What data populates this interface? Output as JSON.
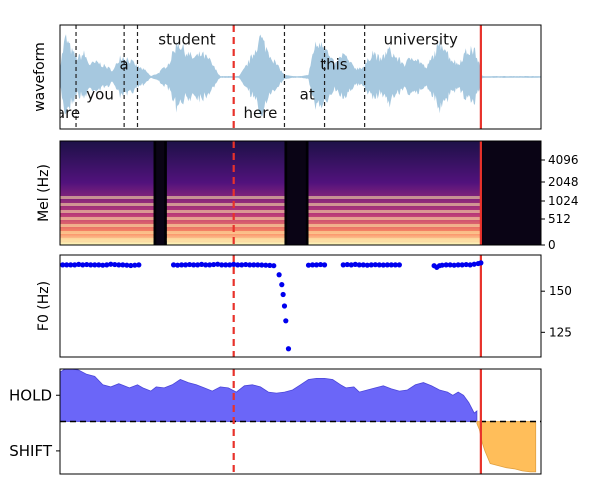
{
  "colors": {
    "waveform": "#a6c8df",
    "word_boundary": "#222222",
    "cursor_dashed": "#e8322b",
    "cursor_solid": "#e8322b",
    "f0_points": "#0000ee",
    "hold_fill": "#6b66f8",
    "shift_fill": "#ffbe5a",
    "threshold": "#000000"
  },
  "chart_data": [
    {
      "type": "area",
      "panel": "waveform",
      "ylabel": "waveform",
      "words": [
        {
          "text": "are",
          "t": 0.06,
          "y": -0.72
        },
        {
          "text": "you",
          "t": 0.3,
          "y": -0.35
        },
        {
          "text": "a",
          "t": 0.48,
          "y": 0.25
        },
        {
          "text": "student",
          "t": 0.95,
          "y": 0.75
        },
        {
          "text": "here",
          "t": 1.5,
          "y": -0.72
        },
        {
          "text": "at",
          "t": 1.85,
          "y": -0.35
        },
        {
          "text": "this",
          "t": 2.05,
          "y": 0.25
        },
        {
          "text": "university",
          "t": 2.7,
          "y": 0.75
        }
      ],
      "word_boundaries": [
        0.12,
        0.48,
        0.58,
        1.68,
        1.98,
        2.28
      ],
      "cursor_dashed": 1.3,
      "cursor_solid": 3.15,
      "envelope": [
        [
          0.0,
          0.25
        ],
        [
          0.04,
          0.95
        ],
        [
          0.09,
          0.6
        ],
        [
          0.13,
          0.45
        ],
        [
          0.18,
          0.55
        ],
        [
          0.22,
          0.3
        ],
        [
          0.28,
          0.35
        ],
        [
          0.34,
          0.25
        ],
        [
          0.4,
          0.15
        ],
        [
          0.45,
          0.5
        ],
        [
          0.5,
          0.45
        ],
        [
          0.54,
          0.35
        ],
        [
          0.58,
          0.25
        ],
        [
          0.64,
          0.15
        ],
        [
          0.68,
          0.02
        ],
        [
          0.74,
          0.1
        ],
        [
          0.82,
          0.35
        ],
        [
          0.88,
          0.85
        ],
        [
          0.94,
          0.6
        ],
        [
          1.0,
          0.45
        ],
        [
          1.06,
          0.55
        ],
        [
          1.12,
          0.4
        ],
        [
          1.16,
          0.2
        ],
        [
          1.2,
          0.02
        ],
        [
          1.34,
          0.02
        ],
        [
          1.38,
          0.2
        ],
        [
          1.44,
          0.5
        ],
        [
          1.5,
          0.95
        ],
        [
          1.56,
          0.6
        ],
        [
          1.62,
          0.3
        ],
        [
          1.68,
          0.05
        ],
        [
          1.74,
          0.02
        ],
        [
          1.8,
          0.02
        ],
        [
          1.86,
          0.05
        ],
        [
          1.9,
          0.7
        ],
        [
          1.96,
          0.9
        ],
        [
          2.02,
          0.45
        ],
        [
          2.06,
          0.3
        ],
        [
          2.12,
          0.55
        ],
        [
          2.18,
          0.3
        ],
        [
          2.22,
          0.2
        ],
        [
          2.28,
          0.25
        ],
        [
          2.34,
          0.6
        ],
        [
          2.4,
          0.4
        ],
        [
          2.46,
          0.65
        ],
        [
          2.52,
          0.45
        ],
        [
          2.58,
          0.3
        ],
        [
          2.64,
          0.5
        ],
        [
          2.7,
          0.35
        ],
        [
          2.74,
          0.2
        ],
        [
          2.8,
          0.55
        ],
        [
          2.86,
          0.85
        ],
        [
          2.92,
          0.45
        ],
        [
          2.98,
          0.3
        ],
        [
          3.04,
          0.6
        ],
        [
          3.1,
          0.65
        ],
        [
          3.14,
          0.3
        ],
        [
          3.16,
          0.02
        ],
        [
          3.6,
          0.02
        ]
      ],
      "xlim": [
        0,
        3.6
      ],
      "ylim": [
        -1,
        1
      ]
    },
    {
      "type": "heatmap",
      "panel": "mel",
      "ylabel": "Mel (Hz)",
      "yticks": [
        "0",
        "512",
        "1024",
        "2048",
        "4096"
      ],
      "silent_gaps": [
        [
          0.72,
          0.78
        ],
        [
          1.7,
          1.84
        ],
        [
          3.16,
          3.6
        ]
      ],
      "voiced_segments": [
        [
          0.0,
          0.7
        ],
        [
          0.8,
          1.68
        ],
        [
          1.86,
          3.15
        ]
      ],
      "cursor_dashed": 1.3,
      "cursor_solid": 3.15,
      "xlim": [
        0,
        3.6
      ]
    },
    {
      "type": "scatter",
      "panel": "f0",
      "ylabel": "F0 (Hz)",
      "yticks": [
        125,
        150
      ],
      "ylim": [
        110,
        172
      ],
      "points": [
        [
          0.02,
          166
        ],
        [
          0.05,
          166
        ],
        [
          0.08,
          166
        ],
        [
          0.11,
          166
        ],
        [
          0.14,
          166.3
        ],
        [
          0.17,
          166
        ],
        [
          0.2,
          166.2
        ],
        [
          0.23,
          166
        ],
        [
          0.26,
          166
        ],
        [
          0.29,
          166
        ],
        [
          0.32,
          165.8
        ],
        [
          0.35,
          166
        ],
        [
          0.38,
          166.4
        ],
        [
          0.41,
          166.2
        ],
        [
          0.44,
          166
        ],
        [
          0.47,
          166
        ],
        [
          0.5,
          165.8
        ],
        [
          0.53,
          165.6
        ],
        [
          0.56,
          165.8
        ],
        [
          0.59,
          166
        ],
        [
          0.85,
          166
        ],
        [
          0.88,
          165.8
        ],
        [
          0.91,
          166
        ],
        [
          0.94,
          166
        ],
        [
          0.97,
          166.2
        ],
        [
          1.0,
          166
        ],
        [
          1.03,
          166
        ],
        [
          1.06,
          166.3
        ],
        [
          1.09,
          166
        ],
        [
          1.12,
          166
        ],
        [
          1.15,
          166.2
        ],
        [
          1.18,
          166.4
        ],
        [
          1.21,
          166
        ],
        [
          1.24,
          166
        ],
        [
          1.27,
          166
        ],
        [
          1.3,
          166.3
        ],
        [
          1.33,
          166
        ],
        [
          1.36,
          166
        ],
        [
          1.39,
          166.2
        ],
        [
          1.42,
          166
        ],
        [
          1.45,
          166
        ],
        [
          1.48,
          166
        ],
        [
          1.51,
          165.9
        ],
        [
          1.54,
          165.8
        ],
        [
          1.57,
          165.7
        ],
        [
          1.6,
          165.5
        ],
        [
          1.64,
          160
        ],
        [
          1.66,
          154
        ],
        [
          1.67,
          148
        ],
        [
          1.68,
          141
        ],
        [
          1.69,
          132
        ],
        [
          1.71,
          115
        ],
        [
          1.86,
          165.8
        ],
        [
          1.89,
          166
        ],
        [
          1.92,
          166
        ],
        [
          1.95,
          166.2
        ],
        [
          1.98,
          166
        ],
        [
          2.12,
          166
        ],
        [
          2.15,
          166.2
        ],
        [
          2.18,
          166
        ],
        [
          2.21,
          166.3
        ],
        [
          2.24,
          166
        ],
        [
          2.27,
          166
        ],
        [
          2.3,
          165.8
        ],
        [
          2.33,
          166
        ],
        [
          2.36,
          166.1
        ],
        [
          2.39,
          166
        ],
        [
          2.42,
          165.9
        ],
        [
          2.45,
          166
        ],
        [
          2.48,
          166
        ],
        [
          2.51,
          166
        ],
        [
          2.54,
          166
        ],
        [
          2.8,
          165.5
        ],
        [
          2.82,
          164.5
        ],
        [
          2.84,
          165.5
        ],
        [
          2.86,
          165.8
        ],
        [
          2.89,
          166
        ],
        [
          2.92,
          166
        ],
        [
          2.95,
          165.8
        ],
        [
          2.98,
          166
        ],
        [
          3.01,
          166
        ],
        [
          3.04,
          166.2
        ],
        [
          3.07,
          166
        ],
        [
          3.1,
          166.4
        ],
        [
          3.13,
          166.8
        ],
        [
          3.15,
          167.2
        ]
      ],
      "cursor_dashed": 1.3,
      "cursor_solid": 3.15,
      "xlim": [
        0,
        3.6
      ]
    },
    {
      "type": "area",
      "panel": "turn",
      "yticks": [
        "HOLD",
        "SHIFT"
      ],
      "threshold": 0.5,
      "ylim": [
        0,
        1
      ],
      "hold_curve": [
        [
          0.0,
          0.97
        ],
        [
          0.04,
          1.0
        ],
        [
          0.09,
          1.0
        ],
        [
          0.14,
          0.99
        ],
        [
          0.2,
          0.95
        ],
        [
          0.26,
          0.93
        ],
        [
          0.32,
          0.85
        ],
        [
          0.38,
          0.83
        ],
        [
          0.44,
          0.86
        ],
        [
          0.48,
          0.84
        ],
        [
          0.52,
          0.82
        ],
        [
          0.58,
          0.85
        ],
        [
          0.62,
          0.82
        ],
        [
          0.68,
          0.79
        ],
        [
          0.72,
          0.83
        ],
        [
          0.78,
          0.82
        ],
        [
          0.84,
          0.85
        ],
        [
          0.9,
          0.9
        ],
        [
          0.96,
          0.87
        ],
        [
          1.02,
          0.85
        ],
        [
          1.08,
          0.82
        ],
        [
          1.14,
          0.79
        ],
        [
          1.2,
          0.83
        ],
        [
          1.26,
          0.82
        ],
        [
          1.32,
          0.78
        ],
        [
          1.38,
          0.84
        ],
        [
          1.44,
          0.85
        ],
        [
          1.5,
          0.83
        ],
        [
          1.56,
          0.78
        ],
        [
          1.62,
          0.77
        ],
        [
          1.68,
          0.78
        ],
        [
          1.74,
          0.8
        ],
        [
          1.8,
          0.85
        ],
        [
          1.86,
          0.9
        ],
        [
          1.92,
          0.91
        ],
        [
          1.98,
          0.91
        ],
        [
          2.04,
          0.9
        ],
        [
          2.1,
          0.85
        ],
        [
          2.14,
          0.82
        ],
        [
          2.2,
          0.83
        ],
        [
          2.24,
          0.78
        ],
        [
          2.3,
          0.8
        ],
        [
          2.36,
          0.82
        ],
        [
          2.42,
          0.84
        ],
        [
          2.48,
          0.81
        ],
        [
          2.54,
          0.79
        ],
        [
          2.6,
          0.8
        ],
        [
          2.66,
          0.85
        ],
        [
          2.72,
          0.87
        ],
        [
          2.78,
          0.84
        ],
        [
          2.84,
          0.8
        ],
        [
          2.9,
          0.78
        ],
        [
          2.94,
          0.75
        ],
        [
          2.98,
          0.78
        ],
        [
          3.02,
          0.75
        ],
        [
          3.06,
          0.68
        ],
        [
          3.1,
          0.58
        ],
        [
          3.12,
          0.6
        ]
      ],
      "shift_curve": [
        [
          3.12,
          0.48
        ],
        [
          3.14,
          0.42
        ],
        [
          3.16,
          0.3
        ],
        [
          3.18,
          0.22
        ],
        [
          3.22,
          0.1
        ],
        [
          3.28,
          0.08
        ],
        [
          3.34,
          0.06
        ],
        [
          3.4,
          0.05
        ],
        [
          3.46,
          0.03
        ],
        [
          3.52,
          0.02
        ],
        [
          3.56,
          0.02
        ],
        [
          3.56,
          0.5
        ]
      ],
      "cursor_dashed": 1.3,
      "cursor_solid": 3.15,
      "xlim": [
        0,
        3.6
      ]
    }
  ]
}
